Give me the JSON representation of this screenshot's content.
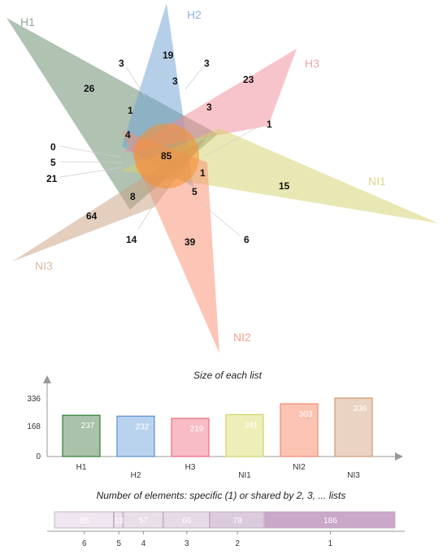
{
  "chart_data": [
    {
      "type": "venn",
      "sets": [
        {
          "name": "H1",
          "color": "#4f7a56"
        },
        {
          "name": "H2",
          "color": "#6b9fd4"
        },
        {
          "name": "H3",
          "color": "#f28a98"
        },
        {
          "name": "NI1",
          "color": "#d3d26a"
        },
        {
          "name": "NI2",
          "color": "#f98b6e"
        },
        {
          "name": "NI3",
          "color": "#c9a07f"
        }
      ],
      "region_counts": [
        "19",
        "3",
        "3",
        "26",
        "23",
        "1",
        "3",
        "3",
        "1",
        "4",
        "85",
        "0",
        "5",
        "21",
        "1",
        "15",
        "8",
        "5",
        "64",
        "14",
        "39",
        "6"
      ]
    },
    {
      "type": "bar",
      "title": "Size of each list",
      "categories": [
        "H1",
        "H2",
        "H3",
        "NI1",
        "NI2",
        "NI3"
      ],
      "values": [
        237,
        232,
        219,
        241,
        303,
        336
      ],
      "colors": [
        "#2e7d32",
        "#5b8fd0",
        "#ee6b7e",
        "#d3d26a",
        "#f38a6e",
        "#cc9b74"
      ],
      "fills": [
        "#a9c2a9",
        "#b9d3ef",
        "#f8bcc6",
        "#eeeeb8",
        "#fbc3b2",
        "#ead3c2"
      ],
      "y_ticks": [
        "0",
        "168",
        "336"
      ],
      "ylim": [
        0,
        336
      ]
    },
    {
      "type": "bar",
      "title": "Number of elements: specific (1) or shared by 2, 3, ... lists",
      "categories": [
        "6",
        "5",
        "4",
        "3",
        "2",
        "1"
      ],
      "values": [
        85,
        13,
        57,
        66,
        78,
        186
      ],
      "fills": [
        "#efe6ef",
        "#ece2ec",
        "#e9dfe9",
        "#e6dae6",
        "#dccbdc",
        "#c9a8c9"
      ]
    }
  ]
}
